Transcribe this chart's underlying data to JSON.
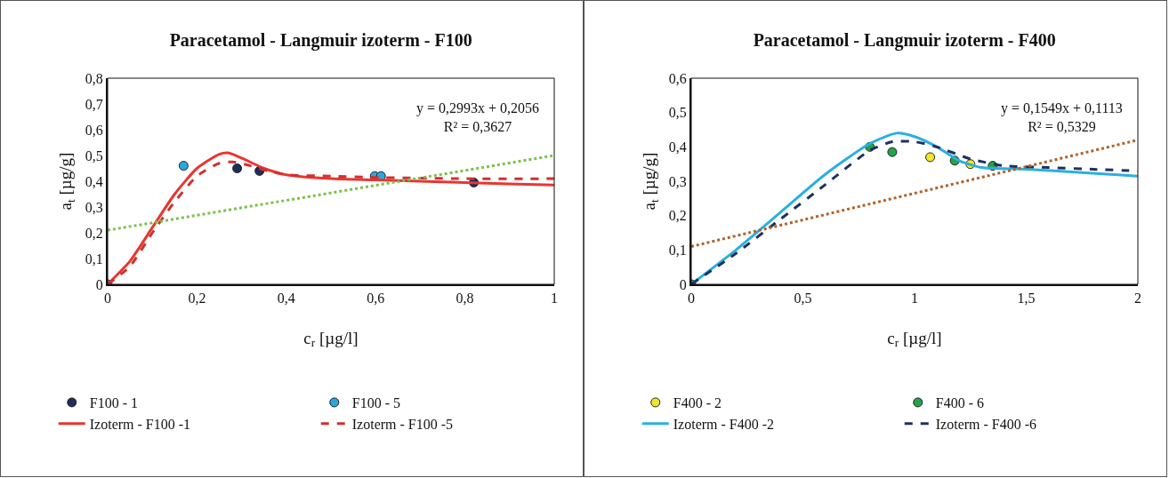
{
  "chart_data": [
    {
      "type": "scatter",
      "title": "Paracetamol - Langmuir izoterm - F100",
      "xlabel": "c$_{r}$ [µg/l]",
      "ylabel": "a$_{t}$ [µg/g]",
      "xlim": [
        0,
        1
      ],
      "ylim": [
        0,
        0.8
      ],
      "xticks": [
        0,
        {
          "value": 0.2,
          "label": "0,2"
        },
        {
          "value": 0.4,
          "label": "0,4"
        },
        {
          "value": 0.6,
          "label": "0,6"
        },
        {
          "value": 0.8,
          "label": "0,8"
        },
        1
      ],
      "yticks": [
        0,
        {
          "value": 0.1,
          "label": "0,1"
        },
        {
          "value": 0.2,
          "label": "0,2"
        },
        {
          "value": 0.3,
          "label": "0,3"
        },
        {
          "value": 0.4,
          "label": "0,4"
        },
        {
          "value": 0.5,
          "label": "0,5"
        },
        {
          "value": 0.6,
          "label": "0,6"
        },
        {
          "value": 0.7,
          "label": "0,7"
        },
        {
          "value": 0.8,
          "label": "0,8"
        }
      ],
      "grid": false,
      "legend": "bottom",
      "annotations": [
        "y = 0,2993x + 0,2056\nR² = 0,3627"
      ],
      "series": [
        {
          "name": "F100 - 1",
          "marker": "circle",
          "color": "#1f2d5a",
          "x": [
            0.29,
            0.34,
            0.82
          ],
          "values": [
            0.45,
            0.44,
            0.395
          ]
        },
        {
          "name": "F100 - 5",
          "marker": "circle",
          "color": "#29a8e0",
          "x": [
            0,
            0.17,
            0.598,
            0.612
          ],
          "values": [
            0,
            0.46,
            0.42,
            0.42
          ]
        },
        {
          "name": "Izoterm - F100 -1",
          "type": "line",
          "line_style": "solid",
          "color": "#e8362f",
          "x": [
            0,
            0.05,
            0.1,
            0.15,
            0.2,
            0.25,
            0.27,
            0.3,
            0.35,
            0.4,
            0.5,
            0.6,
            0.7,
            0.8,
            0.9,
            1
          ],
          "values": [
            0,
            0.09,
            0.22,
            0.35,
            0.45,
            0.505,
            0.51,
            0.49,
            0.45,
            0.425,
            0.41,
            0.405,
            0.4,
            0.395,
            0.39,
            0.385
          ]
        },
        {
          "name": "Izoterm - F100 -5",
          "type": "line",
          "line_style": "dashed",
          "color": "#d03030",
          "x": [
            0,
            0.05,
            0.1,
            0.15,
            0.2,
            0.25,
            0.28,
            0.32,
            0.36,
            0.4,
            0.5,
            0.6,
            0.8,
            1
          ],
          "values": [
            0,
            0.07,
            0.2,
            0.32,
            0.42,
            0.47,
            0.475,
            0.46,
            0.44,
            0.425,
            0.42,
            0.415,
            0.41,
            0.41
          ]
        },
        {
          "type": "line",
          "line_style": "dotted",
          "color": "#7cc04a",
          "x": [
            0,
            1
          ],
          "values": [
            0.21,
            0.5
          ]
        }
      ]
    },
    {
      "type": "scatter",
      "title": "Paracetamol - Langmuir izoterm - F400",
      "xlabel": "c$_{r}$ [µg/l]",
      "ylabel": "a$_{t}$ [µg/g]",
      "xlim": [
        0,
        2
      ],
      "ylim": [
        0,
        0.6
      ],
      "xticks": [
        0,
        {
          "value": 0.5,
          "label": "0,5"
        },
        1,
        {
          "value": 1.5,
          "label": "1,5"
        },
        2
      ],
      "yticks": [
        0,
        {
          "value": 0.1,
          "label": "0,1"
        },
        {
          "value": 0.2,
          "label": "0,2"
        },
        {
          "value": 0.3,
          "label": "0,3"
        },
        {
          "value": 0.4,
          "label": "0,4"
        },
        {
          "value": 0.5,
          "label": "0,5"
        },
        {
          "value": 0.6,
          "label": "0,6"
        }
      ],
      "grid": false,
      "legend": "bottom",
      "annotations": [
        "y = 0,1549x + 0,1113\nR² = 0,5329"
      ],
      "series": [
        {
          "name": "F400 - 2",
          "marker": "circle",
          "color": "#f2e530",
          "x": [
            1.07,
            1.25
          ],
          "values": [
            0.37,
            0.35
          ]
        },
        {
          "name": "F400 - 6",
          "marker": "circle",
          "color": "#22a44a",
          "x": [
            0,
            0.8,
            0.9,
            1.18,
            1.35
          ],
          "values": [
            0,
            0.4,
            0.385,
            0.36,
            0.345
          ]
        },
        {
          "name": "Izoterm - F400 -2",
          "type": "line",
          "line_style": "solid",
          "color": "#29b0e0",
          "x": [
            0,
            0.2,
            0.4,
            0.6,
            0.8,
            0.92,
            1,
            1.1,
            1.2,
            1.3,
            1.5,
            1.75,
            2
          ],
          "values": [
            0,
            0.1,
            0.21,
            0.32,
            0.41,
            0.44,
            0.43,
            0.4,
            0.36,
            0.34,
            0.335,
            0.325,
            0.315
          ]
        },
        {
          "name": "Izoterm - F400 -6",
          "type": "line",
          "line_style": "dashed",
          "color": "#1f3060",
          "x": [
            0,
            0.2,
            0.4,
            0.6,
            0.8,
            0.9,
            1,
            1.1,
            1.25,
            1.4,
            1.6,
            1.8,
            2
          ],
          "values": [
            0,
            0.09,
            0.19,
            0.29,
            0.39,
            0.415,
            0.415,
            0.4,
            0.365,
            0.345,
            0.34,
            0.335,
            0.33
          ]
        },
        {
          "type": "line",
          "line_style": "dotted",
          "color": "#b0622a",
          "x": [
            0,
            2
          ],
          "values": [
            0.11,
            0.42
          ]
        }
      ]
    }
  ]
}
